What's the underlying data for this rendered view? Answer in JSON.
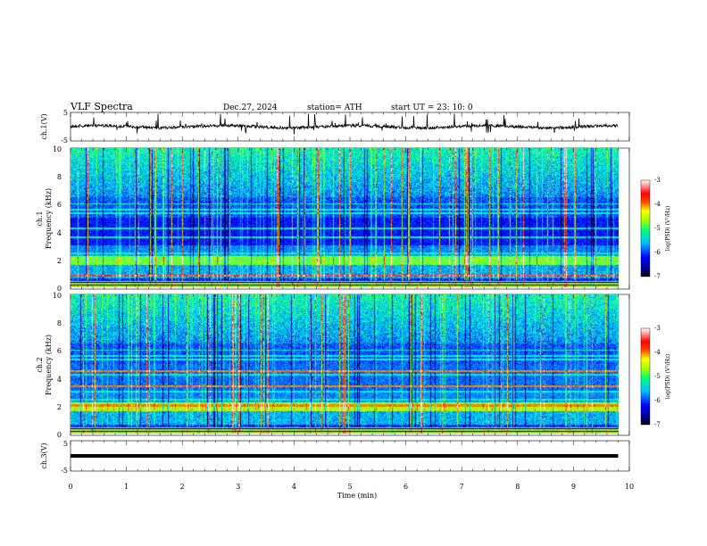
{
  "header": {
    "title": "VLF  Spectra",
    "date": "Dec.27, 2024",
    "station": "station= ATH",
    "start_ut": "start  UT  =    23: 10: 0"
  },
  "chart_data": [
    {
      "type": "line",
      "ylabel": "ch.1(V)",
      "ylim": [
        -5,
        5
      ],
      "y_ticks": [
        "5",
        "-5"
      ],
      "trace": "noisy waveform near 0 V with frequent short spikes",
      "baseline": 0
    },
    {
      "type": "heatmap",
      "ylabel_channel": "ch.1",
      "ylabel": "Frequency  (kHz)",
      "ylim": [
        0,
        10
      ],
      "y_ticks": [
        "0",
        "2",
        "4",
        "6",
        "8",
        "10"
      ],
      "colorbar": {
        "label": "log(PSD) (V²/Hz)",
        "range": [
          -7,
          -3
        ],
        "ticks": [
          "-3",
          "-4",
          "-5",
          "-6",
          "-7"
        ]
      },
      "features": {
        "strong_band_khz": [
          1.6,
          2.2
        ],
        "intense_line_khz": 0.8,
        "horizontal_lines_khz": [
          2.4,
          3.6,
          4.2,
          5.3,
          5.6,
          6.0
        ],
        "hiss_above_khz": 6.5,
        "sferics": "frequent broadband vertical impulses throughout"
      }
    },
    {
      "type": "heatmap",
      "ylabel_channel": "ch.2",
      "ylabel": "Frequency  (kHz)",
      "ylim": [
        0,
        10
      ],
      "y_ticks": [
        "0",
        "2",
        "4",
        "6",
        "8",
        "10"
      ],
      "colorbar": {
        "label": "log(PSD) (V²/Hz)",
        "range": [
          -7,
          -3
        ],
        "ticks": [
          "-3",
          "-4",
          "-5",
          "-6",
          "-7"
        ]
      },
      "features": {
        "strong_band_khz": [
          1.6,
          2.2
        ],
        "red_lines_khz": [
          2.0,
          3.4,
          4.5
        ],
        "horizontal_lines_khz": [
          2.4,
          3.0,
          4.2,
          5.3,
          5.6,
          6.0
        ],
        "hiss_above_khz": 6.5,
        "sferics": "frequent broadband vertical impulses throughout"
      }
    },
    {
      "type": "line",
      "ylabel": "ch.3(V)",
      "ylim": [
        -5,
        5
      ],
      "y_ticks": [
        "5",
        "-5"
      ],
      "trace": "flat thick line",
      "baseline": 0
    }
  ],
  "time_axis": {
    "label": "Time  (min)",
    "range": [
      0,
      10
    ],
    "ticks": [
      "0",
      "1",
      "2",
      "3",
      "4",
      "5",
      "6",
      "7",
      "8",
      "9",
      "10"
    ],
    "data_end_min": 9.8
  },
  "colors": {
    "jet": [
      "#000080",
      "#0000ff",
      "#00a0ff",
      "#00ffff",
      "#00ff80",
      "#80ff00",
      "#ffff00",
      "#ff8000",
      "#ff0000",
      "#ffffff"
    ]
  }
}
